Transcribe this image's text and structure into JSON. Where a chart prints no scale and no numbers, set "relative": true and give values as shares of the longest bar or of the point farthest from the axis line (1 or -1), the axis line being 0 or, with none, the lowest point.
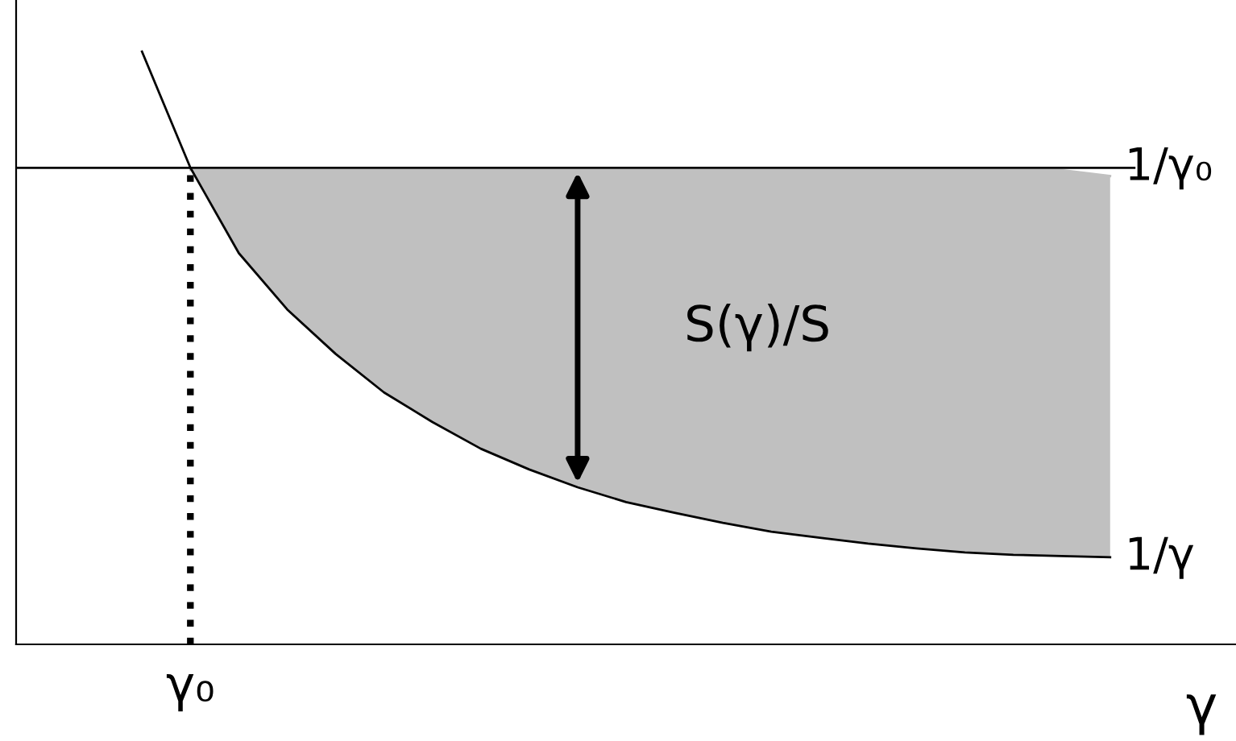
{
  "chart_data": {
    "type": "line",
    "relative": true,
    "xlabel": "γ",
    "categories": [
      null,
      null,
      null,
      null,
      null,
      null,
      null,
      null,
      null,
      null,
      null,
      null,
      null,
      null,
      null,
      null,
      null,
      null,
      null,
      null,
      null
    ],
    "series": [
      {
        "type": "area",
        "color": "#c0c0c0",
        "values": [
          null,
          0.8,
          0.8,
          0.8,
          0.8,
          0.8,
          0.8,
          0.8,
          0.8,
          0.8,
          0.8,
          0.8,
          0.8,
          0.8,
          0.8,
          0.8,
          0.8,
          0.8,
          0.8,
          0.8,
          0.79
        ]
      },
      {
        "name": "1/γ",
        "color": "#000000",
        "values": [
          1.0,
          0.804,
          0.66,
          0.565,
          0.49,
          0.425,
          0.375,
          0.33,
          0.295,
          0.265,
          0.24,
          0.222,
          0.205,
          0.19,
          0.18,
          0.17,
          0.162,
          0.155,
          0.151,
          0.149,
          0.147
        ]
      }
    ],
    "ref_lines": [
      {
        "axis": "y",
        "value": 0.804,
        "label": "1/γ₀",
        "color": "#000000",
        "line_style": "solid"
      }
    ],
    "annotations": [
      "S(γ)/S",
      "γ₀"
    ],
    "marker": "none",
    "line_style": "solid"
  }
}
